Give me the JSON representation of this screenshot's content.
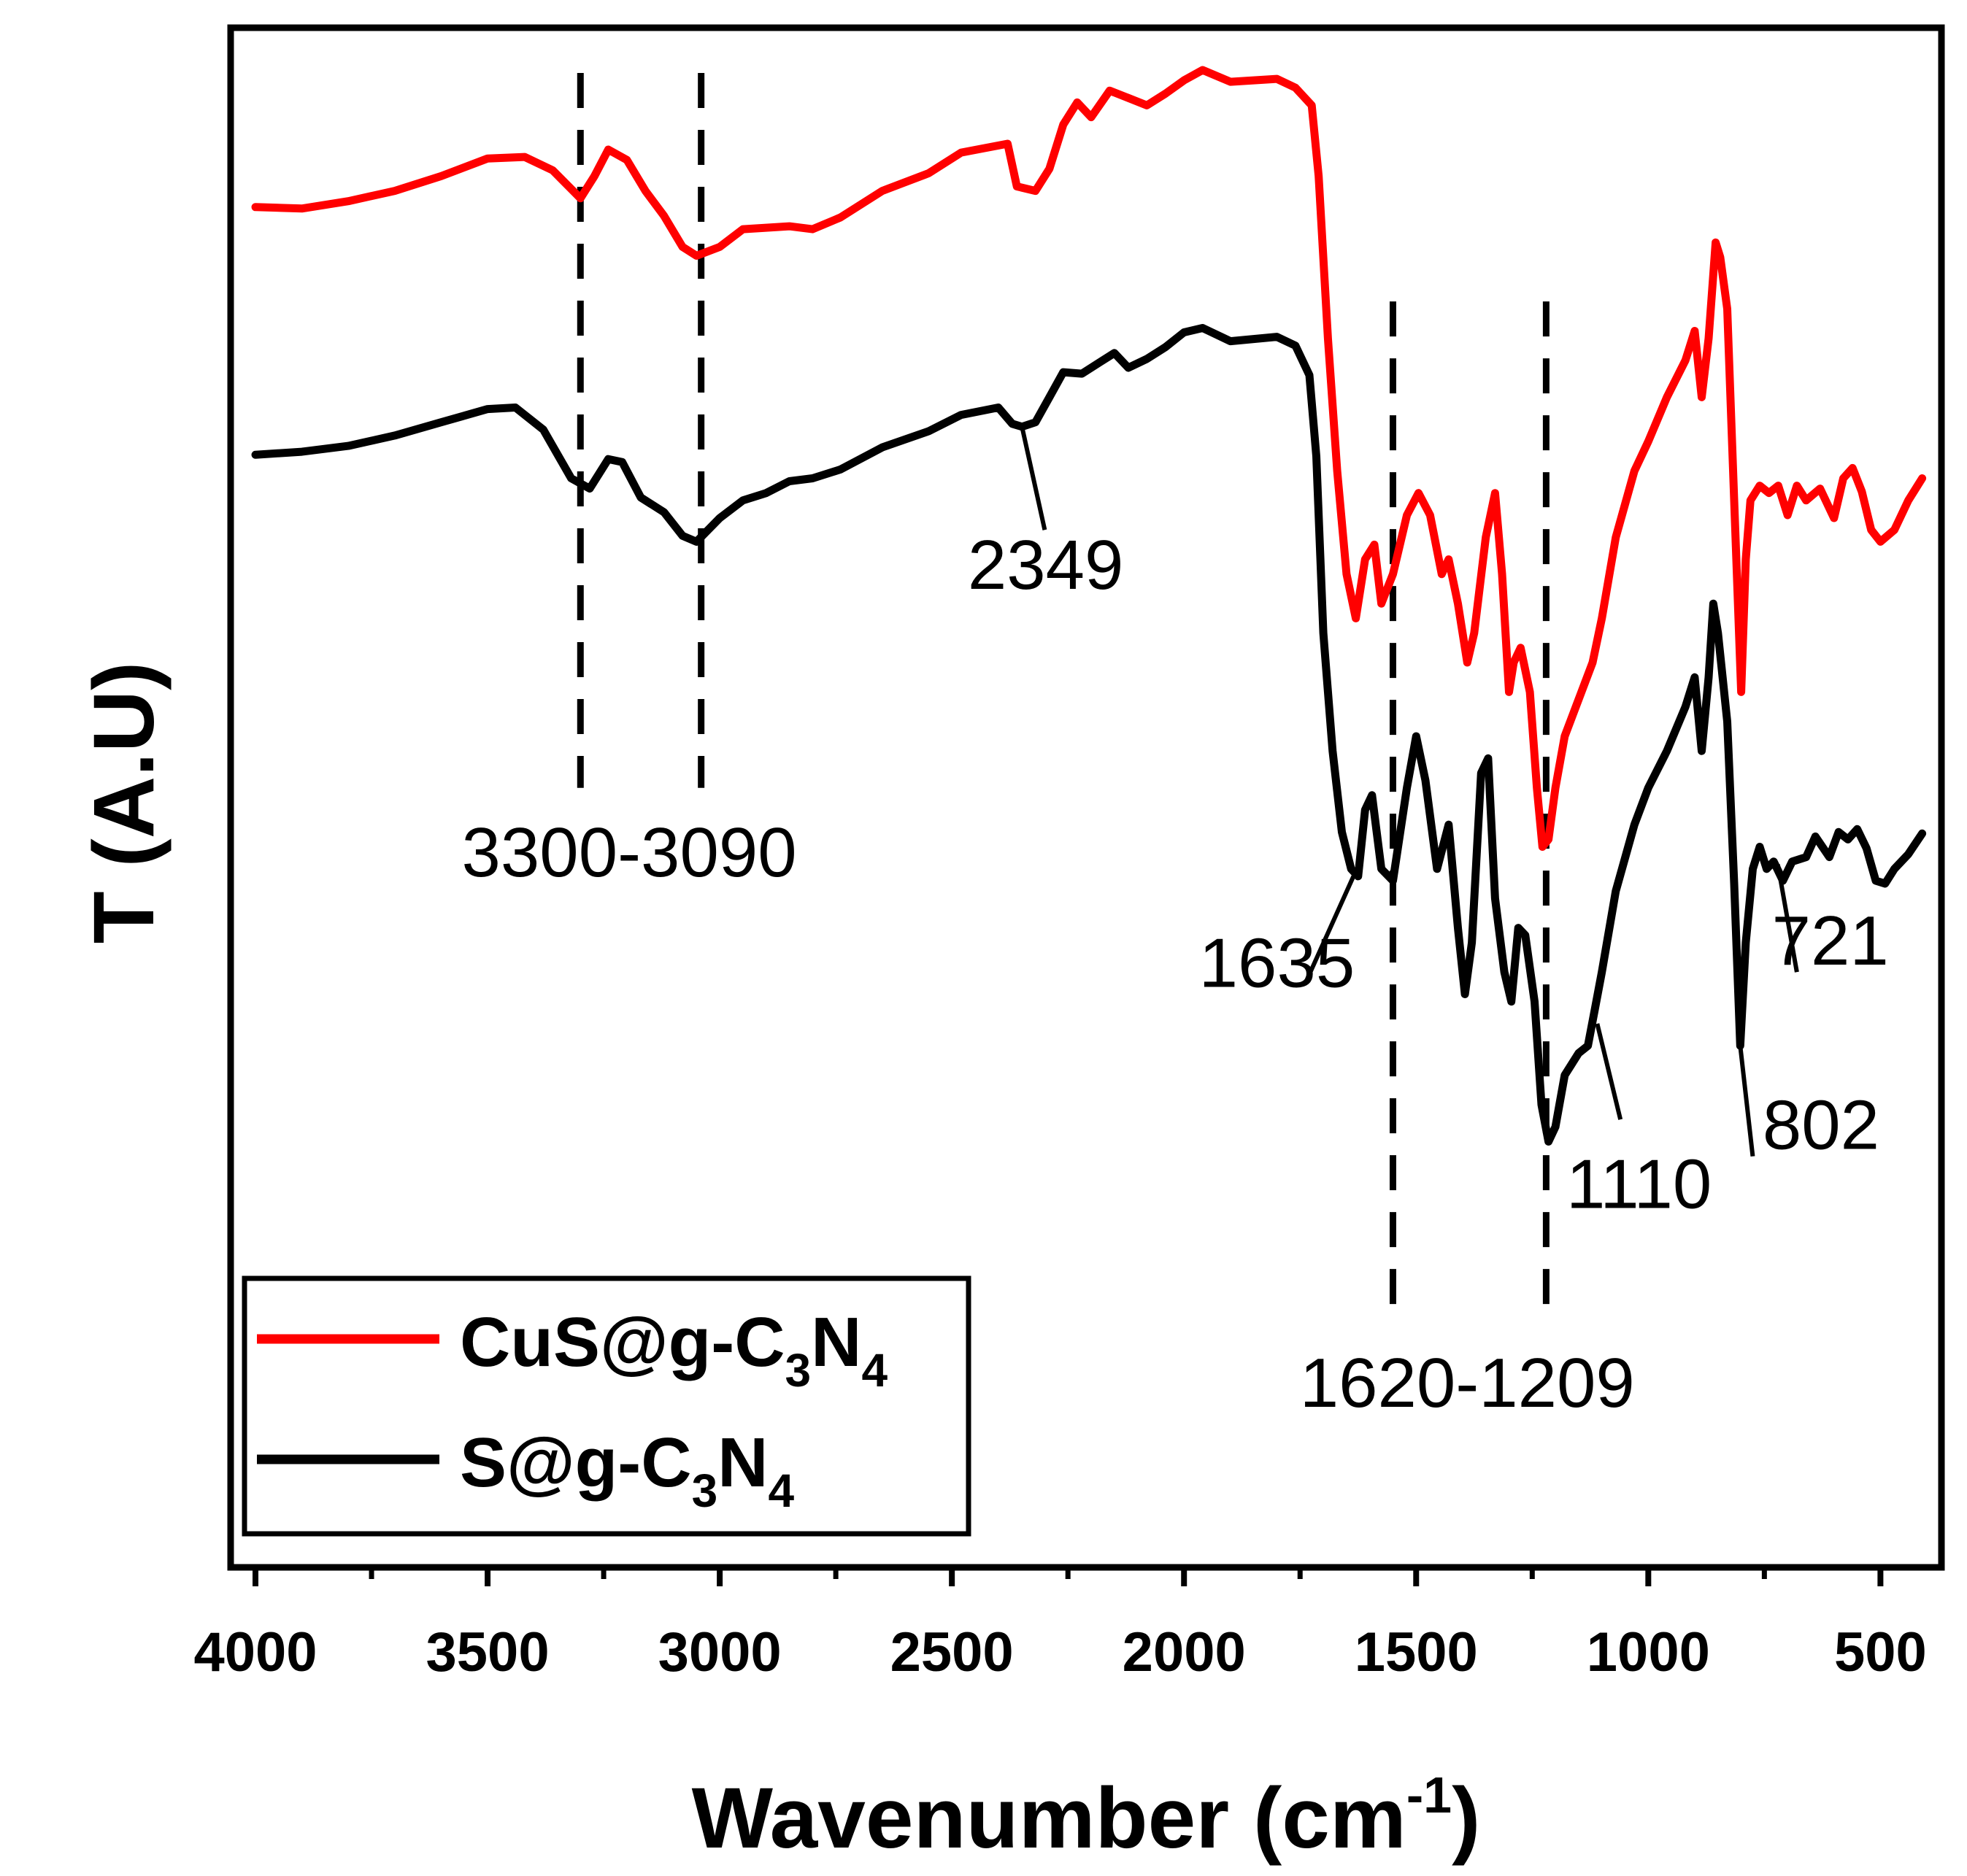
{
  "chart_data": {
    "type": "line",
    "title": "",
    "xlabel": {
      "main": "Wavenumber (cm",
      "sup": "-1",
      "close": ")"
    },
    "ylabel": "T (A.U)",
    "xlim": [
      4000,
      400
    ],
    "x_reversed": true,
    "y_units": "arbitrary (offset traces)",
    "ylim": [
      0,
      100
    ],
    "x_ticks": [
      {
        "value": 4000,
        "label": "4000"
      },
      {
        "value": 3500,
        "label": "3500"
      },
      {
        "value": 3000,
        "label": "3000"
      },
      {
        "value": 2500,
        "label": "2500"
      },
      {
        "value": 2000,
        "label": "2000"
      },
      {
        "value": 1500,
        "label": "1500"
      },
      {
        "value": 1000,
        "label": "1000"
      },
      {
        "value": 500,
        "label": "500"
      }
    ],
    "x_minor_ticks": [
      3750,
      3250,
      2750,
      2250,
      1750,
      1250,
      750
    ],
    "series": [
      {
        "name": "CuS@g-C3N4",
        "legend": {
          "pre": "CuS@g-C",
          "sub1": "3",
          "mid": "N",
          "sub2": "4"
        },
        "color": "#ff0000",
        "points": [
          [
            4000,
            90.9
          ],
          [
            3900,
            90.8
          ],
          [
            3800,
            91.3
          ],
          [
            3700,
            92.0
          ],
          [
            3600,
            93.0
          ],
          [
            3500,
            94.2
          ],
          [
            3420,
            94.3
          ],
          [
            3360,
            93.4
          ],
          [
            3300,
            91.5
          ],
          [
            3270,
            93.0
          ],
          [
            3240,
            94.8
          ],
          [
            3200,
            94.1
          ],
          [
            3160,
            92.0
          ],
          [
            3120,
            90.3
          ],
          [
            3080,
            88.2
          ],
          [
            3050,
            87.6
          ],
          [
            3000,
            88.2
          ],
          [
            2950,
            89.4
          ],
          [
            2850,
            89.6
          ],
          [
            2800,
            89.4
          ],
          [
            2740,
            90.2
          ],
          [
            2650,
            92.0
          ],
          [
            2550,
            93.2
          ],
          [
            2480,
            94.6
          ],
          [
            2380,
            95.2
          ],
          [
            2360,
            92.3
          ],
          [
            2320,
            92.0
          ],
          [
            2290,
            93.5
          ],
          [
            2260,
            96.5
          ],
          [
            2230,
            98.0
          ],
          [
            2200,
            97.0
          ],
          [
            2160,
            98.8
          ],
          [
            2120,
            98.3
          ],
          [
            2080,
            97.8
          ],
          [
            2040,
            98.6
          ],
          [
            2000,
            99.5
          ],
          [
            1960,
            100.2
          ],
          [
            1900,
            99.4
          ],
          [
            1800,
            99.6
          ],
          [
            1760,
            99.0
          ],
          [
            1725,
            97.8
          ],
          [
            1710,
            93.0
          ],
          [
            1690,
            82.0
          ],
          [
            1670,
            73.0
          ],
          [
            1650,
            66.0
          ],
          [
            1630,
            63.0
          ],
          [
            1610,
            67.0
          ],
          [
            1590,
            68.0
          ],
          [
            1575,
            64.0
          ],
          [
            1550,
            66.0
          ],
          [
            1520,
            70.0
          ],
          [
            1495,
            71.5
          ],
          [
            1470,
            70.0
          ],
          [
            1445,
            66.0
          ],
          [
            1430,
            67.0
          ],
          [
            1410,
            64.0
          ],
          [
            1390,
            60.0
          ],
          [
            1375,
            62.0
          ],
          [
            1350,
            68.5
          ],
          [
            1330,
            71.5
          ],
          [
            1315,
            66.0
          ],
          [
            1300,
            58.0
          ],
          [
            1290,
            60.0
          ],
          [
            1275,
            61.0
          ],
          [
            1255,
            58.0
          ],
          [
            1240,
            51.5
          ],
          [
            1228,
            47.5
          ],
          [
            1215,
            48.0
          ],
          [
            1200,
            51.5
          ],
          [
            1180,
            55.0
          ],
          [
            1150,
            57.5
          ],
          [
            1120,
            60.0
          ],
          [
            1100,
            63.0
          ],
          [
            1070,
            68.5
          ],
          [
            1030,
            73.0
          ],
          [
            1000,
            75.0
          ],
          [
            960,
            78.0
          ],
          [
            920,
            80.5
          ],
          [
            900,
            82.5
          ],
          [
            885,
            78.0
          ],
          [
            870,
            82.0
          ],
          [
            855,
            88.5
          ],
          [
            845,
            87.5
          ],
          [
            830,
            84.0
          ],
          [
            815,
            71.0
          ],
          [
            800,
            58.0
          ],
          [
            790,
            67.0
          ],
          [
            780,
            71.0
          ],
          [
            760,
            72.0
          ],
          [
            740,
            71.5
          ],
          [
            720,
            72.0
          ],
          [
            700,
            70.0
          ],
          [
            680,
            72.0
          ],
          [
            660,
            71.0
          ],
          [
            630,
            71.8
          ],
          [
            600,
            69.8
          ],
          [
            580,
            72.5
          ],
          [
            560,
            73.2
          ],
          [
            540,
            71.6
          ],
          [
            520,
            69.0
          ],
          [
            500,
            68.2
          ],
          [
            470,
            69.0
          ],
          [
            440,
            71.0
          ],
          [
            410,
            72.5
          ]
        ]
      },
      {
        "name": "S@g-C3N4",
        "legend": {
          "pre": "S@g-C",
          "sub1": "3",
          "mid": "N",
          "sub2": "4"
        },
        "color": "#000000",
        "points": [
          [
            4000,
            74.1
          ],
          [
            3900,
            74.3
          ],
          [
            3800,
            74.7
          ],
          [
            3700,
            75.4
          ],
          [
            3600,
            76.3
          ],
          [
            3500,
            77.2
          ],
          [
            3440,
            77.3
          ],
          [
            3380,
            75.8
          ],
          [
            3320,
            72.5
          ],
          [
            3280,
            71.8
          ],
          [
            3240,
            73.8
          ],
          [
            3210,
            73.6
          ],
          [
            3170,
            71.2
          ],
          [
            3120,
            70.2
          ],
          [
            3080,
            68.6
          ],
          [
            3050,
            68.2
          ],
          [
            3000,
            69.8
          ],
          [
            2950,
            71.0
          ],
          [
            2900,
            71.5
          ],
          [
            2850,
            72.3
          ],
          [
            2800,
            72.5
          ],
          [
            2740,
            73.1
          ],
          [
            2650,
            74.6
          ],
          [
            2550,
            75.7
          ],
          [
            2480,
            76.8
          ],
          [
            2400,
            77.3
          ],
          [
            2370,
            76.2
          ],
          [
            2349,
            76.0
          ],
          [
            2320,
            76.3
          ],
          [
            2290,
            78.0
          ],
          [
            2260,
            79.7
          ],
          [
            2220,
            79.6
          ],
          [
            2180,
            80.4
          ],
          [
            2150,
            81.0
          ],
          [
            2120,
            80.0
          ],
          [
            2080,
            80.6
          ],
          [
            2040,
            81.4
          ],
          [
            2000,
            82.4
          ],
          [
            1960,
            82.7
          ],
          [
            1900,
            81.8
          ],
          [
            1800,
            82.1
          ],
          [
            1760,
            81.5
          ],
          [
            1730,
            79.5
          ],
          [
            1715,
            74.0
          ],
          [
            1700,
            62.0
          ],
          [
            1680,
            54.0
          ],
          [
            1660,
            48.5
          ],
          [
            1640,
            46.0
          ],
          [
            1625,
            45.5
          ],
          [
            1610,
            50.0
          ],
          [
            1595,
            51.0
          ],
          [
            1575,
            46.0
          ],
          [
            1550,
            45.2
          ],
          [
            1520,
            51.5
          ],
          [
            1500,
            55.0
          ],
          [
            1480,
            52.0
          ],
          [
            1455,
            46.0
          ],
          [
            1430,
            49.0
          ],
          [
            1410,
            42.0
          ],
          [
            1395,
            37.5
          ],
          [
            1380,
            41.0
          ],
          [
            1360,
            52.5
          ],
          [
            1345,
            53.5
          ],
          [
            1330,
            44.0
          ],
          [
            1310,
            39.0
          ],
          [
            1295,
            37.0
          ],
          [
            1280,
            42.0
          ],
          [
            1265,
            41.5
          ],
          [
            1245,
            37.0
          ],
          [
            1230,
            30.0
          ],
          [
            1215,
            27.5
          ],
          [
            1200,
            28.5
          ],
          [
            1180,
            32.0
          ],
          [
            1150,
            33.5
          ],
          [
            1130,
            34.0
          ],
          [
            1115,
            36.5
          ],
          [
            1100,
            39.0
          ],
          [
            1070,
            44.5
          ],
          [
            1030,
            49.0
          ],
          [
            1000,
            51.5
          ],
          [
            960,
            54.0
          ],
          [
            920,
            57.0
          ],
          [
            900,
            59.0
          ],
          [
            885,
            54.0
          ],
          [
            870,
            59.0
          ],
          [
            860,
            64.0
          ],
          [
            850,
            62.0
          ],
          [
            830,
            56.0
          ],
          [
            815,
            45.0
          ],
          [
            802,
            34.0
          ],
          [
            790,
            41.0
          ],
          [
            775,
            46.0
          ],
          [
            760,
            47.5
          ],
          [
            745,
            46.0
          ],
          [
            730,
            46.5
          ],
          [
            710,
            45.2
          ],
          [
            690,
            46.5
          ],
          [
            660,
            46.8
          ],
          [
            640,
            48.2
          ],
          [
            610,
            46.8
          ],
          [
            590,
            48.5
          ],
          [
            570,
            48.0
          ],
          [
            550,
            48.7
          ],
          [
            530,
            47.4
          ],
          [
            510,
            45.2
          ],
          [
            490,
            45.0
          ],
          [
            470,
            46.0
          ],
          [
            440,
            47.0
          ],
          [
            410,
            48.4
          ]
        ]
      }
    ],
    "annotations": [
      {
        "text": "3300-3090",
        "x": 3195,
        "y": 45.5
      },
      {
        "text": "2349",
        "x": 2298,
        "y": 65.0
      },
      {
        "text": "1635",
        "x": 1800,
        "y": 38.0
      },
      {
        "text": "1620-1209",
        "x": 1390,
        "y": 9.5
      },
      {
        "text": "1110",
        "x": 1020,
        "y": 23.0
      },
      {
        "text": "721",
        "x": 608,
        "y": 39.5
      },
      {
        "text": "802",
        "x": 628,
        "y": 27.0
      }
    ],
    "leader_lines": [
      {
        "label": "2349",
        "from": [
          2349,
          76.0
        ],
        "to": [
          2300,
          69.0
        ]
      },
      {
        "label": "1635",
        "from": [
          1635,
          45.5
        ],
        "to": [
          1735,
          38.5
        ]
      },
      {
        "label": "1110",
        "from": [
          1110,
          35.5
        ],
        "to": [
          1060,
          29.0
        ]
      },
      {
        "label": "721",
        "from": [
          721,
          46.3
        ],
        "to": [
          680,
          39.0
        ]
      },
      {
        "label": "802",
        "from": [
          802,
          34.0
        ],
        "to": [
          775,
          26.5
        ]
      }
    ],
    "dashed_lines": [
      3300,
      3040,
      1550,
      1220
    ],
    "dashed_range": [
      51.5,
      100
    ],
    "dashed_range_lower": [
      16,
      84.5
    ],
    "legend_position": "bottom-left"
  }
}
